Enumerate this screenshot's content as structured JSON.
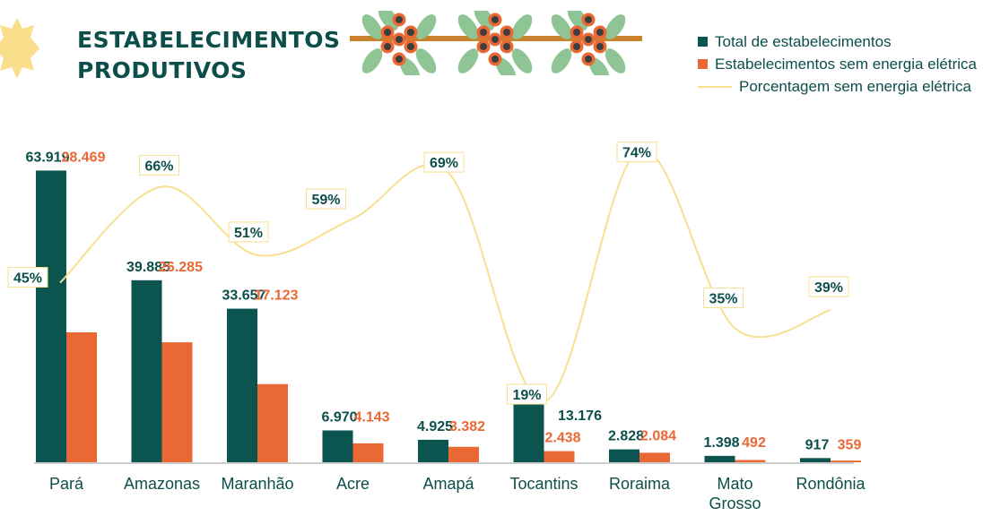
{
  "title_line1": "ESTABELECIMENTOS",
  "title_line2": "PRODUTIVOS",
  "colors": {
    "total": "#0c5450",
    "sem_energia": "#ea6834",
    "percent": "#f7e08f",
    "text": "#0c4f4a"
  },
  "chart_data": {
    "type": "bar",
    "title": "ESTABELECIMENTOS PRODUTIVOS",
    "categories": [
      "Pará",
      "Amazonas",
      "Maranhão",
      "Acre",
      "Amapá",
      "Tocantins",
      "Roraima",
      "Mato Grosso",
      "Rondônia"
    ],
    "series": [
      {
        "name": "Total de estabelecimentos",
        "values": [
          63919,
          39885,
          33657,
          6970,
          4925,
          13176,
          2828,
          1398,
          917
        ],
        "labels": [
          "63.919",
          "39.885",
          "33.657",
          "6.970",
          "4.925",
          "13.176",
          "2.828",
          "1.398",
          "917"
        ]
      },
      {
        "name": "Estabelecimentos sem energia elétrica",
        "values": [
          28469,
          26285,
          17123,
          4143,
          3382,
          2438,
          2084,
          492,
          359
        ],
        "labels": [
          "28.469",
          "26.285",
          "17.123",
          "4.143",
          "3.382",
          "2.438",
          "2.084",
          "492",
          "359"
        ]
      },
      {
        "name": "Porcentagem sem energia elétrica",
        "type": "line",
        "values": [
          45,
          66,
          51,
          59,
          69,
          19,
          74,
          35,
          39
        ],
        "labels": [
          "45%",
          "66%",
          "51%",
          "59%",
          "69%",
          "19%",
          "74%",
          "35%",
          "39%"
        ]
      }
    ],
    "ylim": [
      0,
      64000
    ],
    "legend": "top-right",
    "grid": false
  }
}
